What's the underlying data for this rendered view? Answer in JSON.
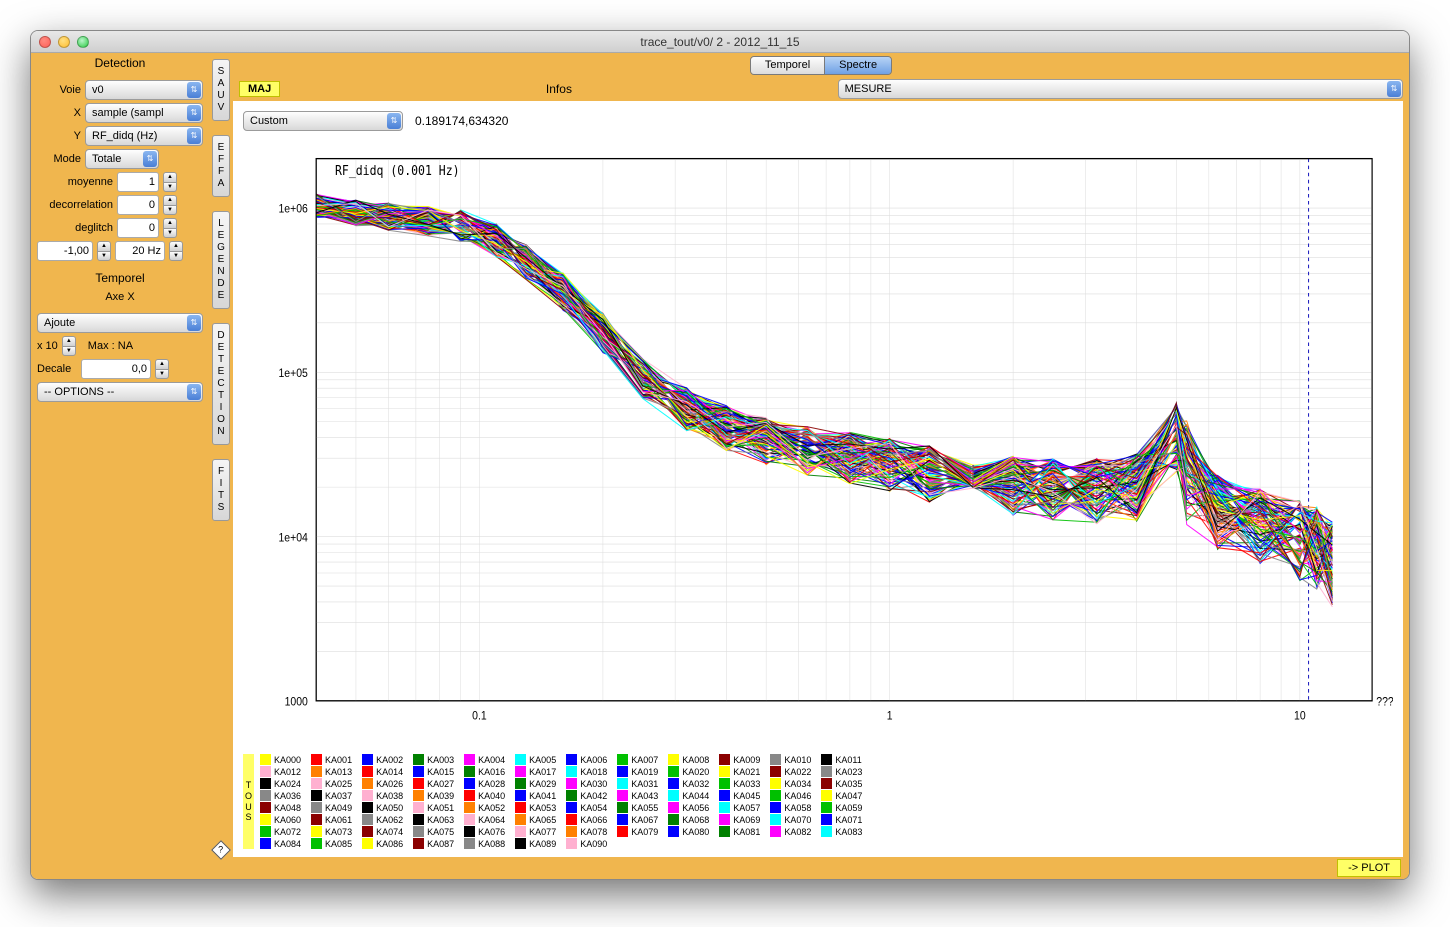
{
  "window": {
    "title": "trace_tout/v0/ 2 - 2012_11_15"
  },
  "tabs": {
    "temporel": "Temporel",
    "spectre": "Spectre",
    "active": "spectre"
  },
  "toolbar": {
    "maj": "MAJ",
    "infos": "Infos",
    "mesure": "MESURE",
    "plot": "-> PLOT"
  },
  "sidebar": {
    "detection_head": "Detection",
    "voie_label": "Voie",
    "voie_value": "v0",
    "x_label": "X",
    "x_value": "sample (sampl",
    "y_label": "Y",
    "y_value": "RF_didq (Hz)",
    "mode_label": "Mode",
    "mode_value": "Totale",
    "moyenne_label": "moyenne",
    "moyenne_value": "1",
    "decorr_label": "decorrelation",
    "decorr_value": "0",
    "deglitch_label": "deglitch",
    "deglitch_value": "0",
    "lowcut": "-1,00",
    "freq": "20 Hz",
    "temporel_head": "Temporel",
    "axex_head": "Axe X",
    "ajoute": "Ajoute",
    "x10": "x 10",
    "max_label": "Max : NA",
    "decale_label": "Decale",
    "decale_value": "0,0",
    "options": "-- OPTIONS --"
  },
  "vbtns": {
    "sauv": "SAUV",
    "effa": "EFFA",
    "legende": "LEGENDE",
    "detection": "DETECTION",
    "fits": "FITS"
  },
  "subbar": {
    "custom": "Custom",
    "coords": "0.189174,634320"
  },
  "chart": {
    "type": "spectrum-loglog",
    "title": "RF_didq (0.001 Hz)",
    "title_font": "11px monospace",
    "x_annot": "???",
    "xscale": "log",
    "yscale": "log",
    "xlim": [
      0.04,
      15
    ],
    "ylim": [
      1000,
      2000000
    ],
    "xticks": [
      0.1,
      1,
      10
    ],
    "xtick_labels": [
      "0.1",
      "1",
      "10"
    ],
    "yticks": [
      1000,
      10000,
      100000,
      1000000
    ],
    "ytick_labels": [
      "1000",
      "1e+04",
      "1e+05",
      "1e+06"
    ],
    "grid_color": "#dddddd",
    "frame_color": "#000000",
    "background": "#ffffff",
    "vline_x": 10.5,
    "vline_color": "#2020c0",
    "vline_dash": "3,3",
    "n_series": 91,
    "x_samples": [
      0.04,
      0.05,
      0.06,
      0.075,
      0.09,
      0.11,
      0.13,
      0.16,
      0.2,
      0.25,
      0.32,
      0.4,
      0.5,
      0.63,
      0.8,
      1.0,
      1.25,
      1.6,
      2.0,
      2.5,
      3.2,
      4.0,
      5.0,
      5.3,
      6.3,
      8.0,
      10.0,
      11.0,
      12.0
    ],
    "baseline_y": [
      1050000,
      950000,
      900000,
      850000,
      800000,
      650000,
      480000,
      320000,
      180000,
      95000,
      62000,
      48000,
      40000,
      35000,
      32000,
      29000,
      26000,
      23000,
      22000,
      21000,
      21000,
      22000,
      45000,
      20000,
      16000,
      13000,
      11000,
      10000,
      8000
    ],
    "spread_factor": 0.55,
    "bump_index": 23,
    "bump_mult": 2.2
  },
  "legend": {
    "tous": "TOUS",
    "prefix": "KA",
    "count": 91,
    "colors": [
      "#ffff00",
      "#ff0000",
      "#0000ff",
      "#008000",
      "#ff00ff",
      "#00ffff",
      "#0000ff",
      "#00c000",
      "#ffff00",
      "#8b0000",
      "#888888",
      "#000000",
      "#ffb0d0",
      "#ff8000",
      "#ff0000",
      "#0000ff",
      "#008000",
      "#ff00ff",
      "#00ffff",
      "#0000ff",
      "#00c000",
      "#ffff00",
      "#8b0000",
      "#888888",
      "#000000",
      "#ffb0d0",
      "#ff8000",
      "#ff0000",
      "#0000ff",
      "#008000",
      "#ff00ff",
      "#00ffff",
      "#0000ff",
      "#00c000",
      "#ffff00",
      "#8b0000",
      "#888888",
      "#000000",
      "#ffb0d0",
      "#ff8000",
      "#ff0000",
      "#0000ff",
      "#008000",
      "#ff00ff",
      "#00ffff",
      "#0000ff",
      "#00c000",
      "#ffff00",
      "#8b0000",
      "#888888",
      "#000000",
      "#ffb0d0",
      "#ff8000",
      "#ff0000",
      "#0000ff",
      "#008000",
      "#ff00ff",
      "#00ffff",
      "#0000ff",
      "#00c000",
      "#ffff00",
      "#8b0000",
      "#888888",
      "#000000",
      "#ffb0d0",
      "#ff8000",
      "#ff0000",
      "#0000ff",
      "#008000",
      "#ff00ff",
      "#00ffff",
      "#0000ff",
      "#00c000",
      "#ffff00",
      "#8b0000",
      "#888888",
      "#000000",
      "#ffb0d0",
      "#ff8000",
      "#ff0000",
      "#0000ff",
      "#008000",
      "#ff00ff",
      "#00ffff",
      "#0000ff",
      "#00c000",
      "#ffff00",
      "#8b0000",
      "#888888",
      "#000000",
      "#ffb0d0"
    ]
  },
  "colors": {
    "window_bg": "#f0b64e",
    "highlight": "#ffff66"
  }
}
